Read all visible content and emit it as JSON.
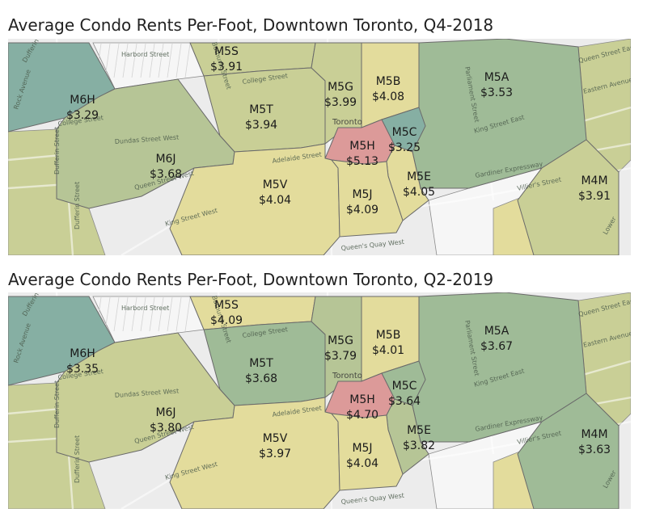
{
  "colors": {
    "yellow": "#e3dc9c",
    "yellow_green": "#c9cf96",
    "olive_green": "#b6c596",
    "green": "#9fbb97",
    "teal": "#86afa3",
    "red": "#dc9a99",
    "background": "#ececec",
    "white_block": "#f6f6f6"
  },
  "streets": {
    "harbord": "Harbord Street",
    "college_1": "College Street",
    "college_2": "College Street",
    "dundas": "Dundas Street West",
    "queen_west": "Queen Street West",
    "queen_east": "Queen Street East",
    "adelaide": "Adelaide Street",
    "king_west": "King Street West",
    "king_east": "King Street East",
    "dufferin_1": "Dufferin Street",
    "dufferin_2": "Dufferin Street",
    "dufferin_3": "Dufferin Street",
    "bathurst": "Bathurst Street",
    "parliament": "Parliament Street",
    "eastern": "Eastern Avenue",
    "gardiner": "Gardiner Expressway",
    "villiers": "Villier's Street",
    "queens_quay": "Queen's Quay West",
    "rock": "Rock Avenue",
    "toronto": "Toronto",
    "lower": "Lower"
  },
  "panels": [
    {
      "title": "Average Condo Rents Per-Foot, Downtown Toronto, Q4-2018",
      "areas": [
        {
          "code": "M6H",
          "value": "$3.29",
          "color": "teal"
        },
        {
          "code": "M5S",
          "value": "$3.91",
          "color": "yellow_green"
        },
        {
          "code": "M5T",
          "value": "$3.94",
          "color": "yellow_green"
        },
        {
          "code": "M5G",
          "value": "$3.99",
          "color": "yellow_green"
        },
        {
          "code": "M5B",
          "value": "$4.08",
          "color": "yellow"
        },
        {
          "code": "M5A",
          "value": "$3.53",
          "color": "green"
        },
        {
          "code": "M6J",
          "value": "$3.68",
          "color": "olive_green"
        },
        {
          "code": "M5H",
          "value": "$5.13",
          "color": "red"
        },
        {
          "code": "M5C",
          "value": "$3.25",
          "color": "teal"
        },
        {
          "code": "M5V",
          "value": "$4.04",
          "color": "yellow"
        },
        {
          "code": "M5E",
          "value": "$4.05",
          "color": "yellow"
        },
        {
          "code": "M5J",
          "value": "$4.09",
          "color": "yellow"
        },
        {
          "code": "M4M",
          "value": "$3.91",
          "color": "yellow_green"
        }
      ]
    },
    {
      "title": "Average Condo Rents Per-Foot, Downtown Toronto, Q2-2019",
      "areas": [
        {
          "code": "M6H",
          "value": "$3.35",
          "color": "teal"
        },
        {
          "code": "M5S",
          "value": "$4.09",
          "color": "yellow"
        },
        {
          "code": "M5T",
          "value": "$3.68",
          "color": "green"
        },
        {
          "code": "M5G",
          "value": "$3.79",
          "color": "olive_green"
        },
        {
          "code": "M5B",
          "value": "$4.01",
          "color": "yellow"
        },
        {
          "code": "M5A",
          "value": "$3.67",
          "color": "green"
        },
        {
          "code": "M6J",
          "value": "$3.80",
          "color": "yellow_green"
        },
        {
          "code": "M5H",
          "value": "$4.70",
          "color": "red"
        },
        {
          "code": "M5C",
          "value": "$3.64",
          "color": "green"
        },
        {
          "code": "M5V",
          "value": "$3.97",
          "color": "yellow"
        },
        {
          "code": "M5E",
          "value": "$3.82",
          "color": "olive_green"
        },
        {
          "code": "M5J",
          "value": "$4.04",
          "color": "yellow"
        },
        {
          "code": "M4M",
          "value": "$3.63",
          "color": "green"
        }
      ]
    }
  ]
}
